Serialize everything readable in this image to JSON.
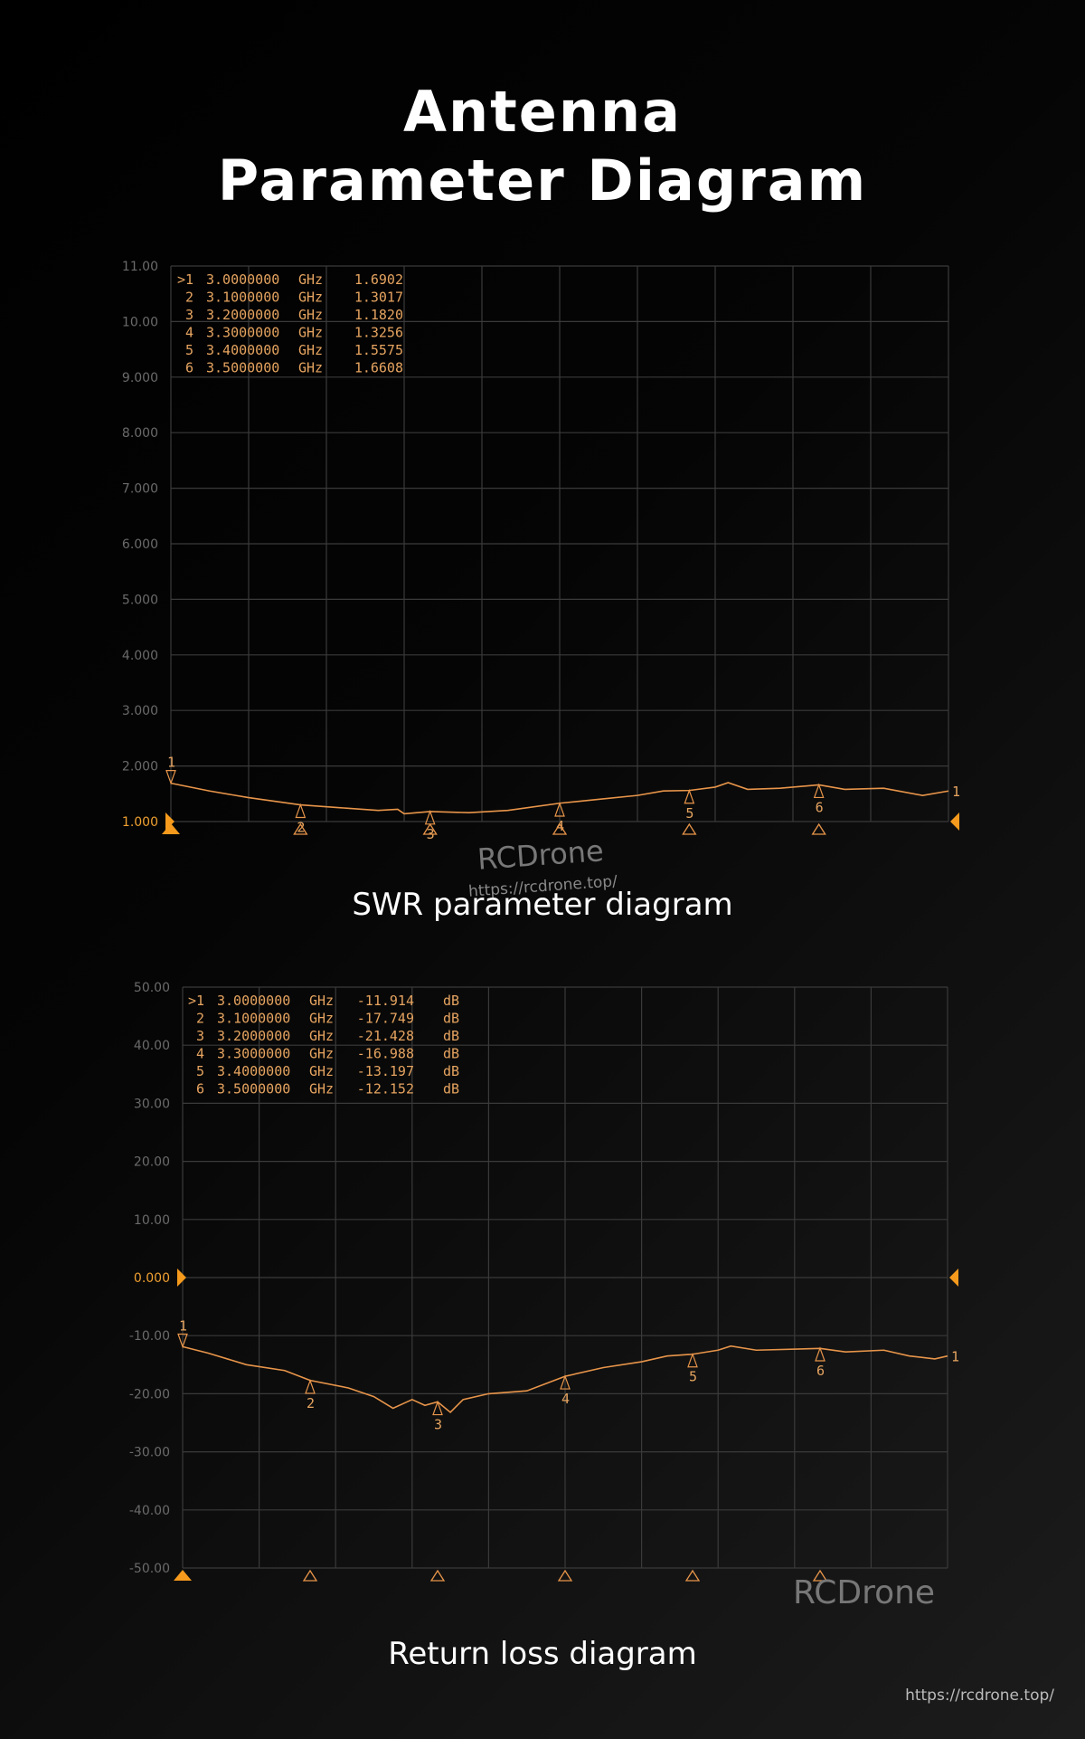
{
  "title_line1": "Antenna",
  "title_line2": "Parameter Diagram",
  "captions": {
    "swr": "SWR parameter diagram",
    "return_loss": "Return loss diagram"
  },
  "watermark": {
    "brand": "RCDrone",
    "url": "https://rcdrone.top/"
  },
  "colors": {
    "trace": "#e8954a",
    "grid": "#3a3a3a",
    "reference": "#f59a1c",
    "marker_text": "#e6a460"
  },
  "chart_data": [
    {
      "type": "line",
      "title": "SWR parameter diagram",
      "xlim": [
        3.0,
        3.6
      ],
      "ylim": [
        1.0,
        11.0
      ],
      "grid": true,
      "yticks": [
        "11.00",
        "10.00",
        "9.000",
        "8.000",
        "7.000",
        "6.000",
        "5.000",
        "4.000",
        "3.000",
        "2.000",
        "1.000"
      ],
      "reference_level": 1.0,
      "markers": [
        {
          "id": ">1",
          "freq": "3.0000000",
          "unit": "GHz",
          "value": "1.6902"
        },
        {
          "id": "2",
          "freq": "3.1000000",
          "unit": "GHz",
          "value": "1.3017"
        },
        {
          "id": "3",
          "freq": "3.2000000",
          "unit": "GHz",
          "value": "1.1820"
        },
        {
          "id": "4",
          "freq": "3.3000000",
          "unit": "GHz",
          "value": "1.3256"
        },
        {
          "id": "5",
          "freq": "3.4000000",
          "unit": "GHz",
          "value": "1.5575"
        },
        {
          "id": "6",
          "freq": "3.5000000",
          "unit": "GHz",
          "value": "1.6608"
        }
      ],
      "x": [
        3.0,
        3.03,
        3.06,
        3.1,
        3.13,
        3.16,
        3.175,
        3.18,
        3.2,
        3.23,
        3.26,
        3.3,
        3.33,
        3.36,
        3.38,
        3.4,
        3.42,
        3.43,
        3.445,
        3.47,
        3.5,
        3.52,
        3.55,
        3.58,
        3.6
      ],
      "y": [
        1.69,
        1.55,
        1.43,
        1.3,
        1.25,
        1.2,
        1.22,
        1.14,
        1.18,
        1.16,
        1.2,
        1.33,
        1.4,
        1.47,
        1.55,
        1.56,
        1.62,
        1.7,
        1.58,
        1.6,
        1.66,
        1.58,
        1.6,
        1.47,
        1.55
      ]
    },
    {
      "type": "line",
      "title": "Return loss diagram",
      "xlim": [
        3.0,
        3.6
      ],
      "ylim": [
        -50,
        50
      ],
      "grid": true,
      "yticks": [
        "50.00",
        "40.00",
        "30.00",
        "20.00",
        "10.00",
        "0.000",
        "-10.00",
        "-20.00",
        "-30.00",
        "-40.00",
        "-50.00"
      ],
      "reference_level": 0,
      "markers": [
        {
          "id": ">1",
          "freq": "3.0000000",
          "unit": "GHz",
          "value": "-11.914",
          "vunit": "dB"
        },
        {
          "id": "2",
          "freq": "3.1000000",
          "unit": "GHz",
          "value": "-17.749",
          "vunit": "dB"
        },
        {
          "id": "3",
          "freq": "3.2000000",
          "unit": "GHz",
          "value": "-21.428",
          "vunit": "dB"
        },
        {
          "id": "4",
          "freq": "3.3000000",
          "unit": "GHz",
          "value": "-16.988",
          "vunit": "dB"
        },
        {
          "id": "5",
          "freq": "3.4000000",
          "unit": "GHz",
          "value": "-13.197",
          "vunit": "dB"
        },
        {
          "id": "6",
          "freq": "3.5000000",
          "unit": "GHz",
          "value": "-12.152",
          "vunit": "dB"
        }
      ],
      "x": [
        3.0,
        3.02,
        3.05,
        3.08,
        3.1,
        3.13,
        3.15,
        3.165,
        3.18,
        3.19,
        3.2,
        3.21,
        3.22,
        3.24,
        3.27,
        3.3,
        3.33,
        3.36,
        3.38,
        3.4,
        3.42,
        3.43,
        3.45,
        3.5,
        3.52,
        3.55,
        3.57,
        3.59,
        3.6
      ],
      "y": [
        -11.9,
        -13,
        -15,
        -16,
        -17.7,
        -19,
        -20.5,
        -22.5,
        -21,
        -22,
        -21.4,
        -23.2,
        -21,
        -20,
        -19.5,
        -17,
        -15.5,
        -14.5,
        -13.5,
        -13.2,
        -12.5,
        -11.8,
        -12.5,
        -12.2,
        -12.8,
        -12.5,
        -13.5,
        -14,
        -13.5
      ]
    }
  ]
}
